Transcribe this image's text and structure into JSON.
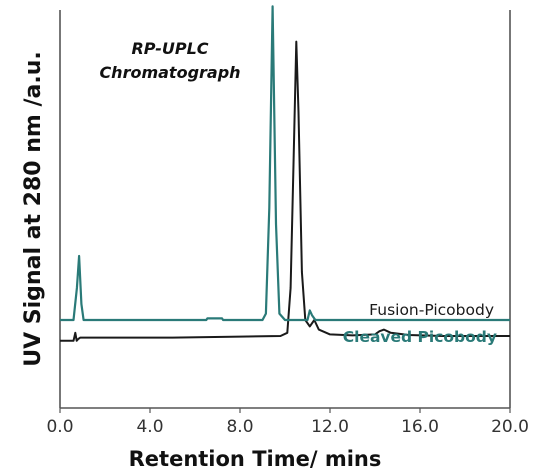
{
  "chart_data": {
    "type": "line",
    "title": "RP-UPLC\nChromatograph",
    "xlabel": "Retention Time/ mins",
    "ylabel": "UV Signal at 280 nm /a.u.",
    "xlim": [
      0,
      20
    ],
    "x_ticks": [
      0.0,
      4.0,
      8.0,
      12.0,
      16.0,
      20.0
    ],
    "x_tick_labels": [
      "0.0",
      "4.0",
      "8.0",
      "12.0",
      "16.0",
      "20.0"
    ],
    "grid": false,
    "legend_position": "right",
    "colors": {
      "fusion": "#1a1a1a",
      "cleaved": "#2a7a78",
      "axis": "#555555"
    },
    "series": [
      {
        "name": "Fusion-Picobody",
        "color": "#1a1a1a",
        "x": [
          0.0,
          0.6,
          0.68,
          0.74,
          0.8,
          0.9,
          2.0,
          5.0,
          8.0,
          9.8,
          10.1,
          10.25,
          10.38,
          10.5,
          10.6,
          10.75,
          10.9,
          11.1,
          11.3,
          11.5,
          12.0,
          13.0,
          14.0,
          14.2,
          14.4,
          14.7,
          15.5,
          17.0,
          20.0
        ],
        "y": [
          0.035,
          0.035,
          0.06,
          0.035,
          0.04,
          0.045,
          0.045,
          0.045,
          0.048,
          0.05,
          0.06,
          0.2,
          0.6,
          0.97,
          0.75,
          0.25,
          0.1,
          0.08,
          0.1,
          0.07,
          0.055,
          0.052,
          0.055,
          0.065,
          0.07,
          0.06,
          0.053,
          0.05,
          0.05
        ]
      },
      {
        "name": "Cleaved Picobody",
        "color": "#2a7a78",
        "x": [
          0.0,
          0.6,
          0.75,
          0.85,
          0.95,
          1.05,
          2.0,
          6.5,
          6.55,
          7.2,
          7.25,
          9.0,
          9.15,
          9.3,
          9.45,
          9.6,
          9.75,
          10.0,
          11.0,
          11.1,
          11.2,
          11.35,
          12.0,
          20.0
        ],
        "y": [
          0.1,
          0.1,
          0.2,
          0.3,
          0.15,
          0.1,
          0.1,
          0.1,
          0.105,
          0.105,
          0.1,
          0.1,
          0.12,
          0.45,
          1.08,
          0.4,
          0.12,
          0.1,
          0.1,
          0.13,
          0.115,
          0.1,
          0.1,
          0.1
        ]
      }
    ]
  }
}
